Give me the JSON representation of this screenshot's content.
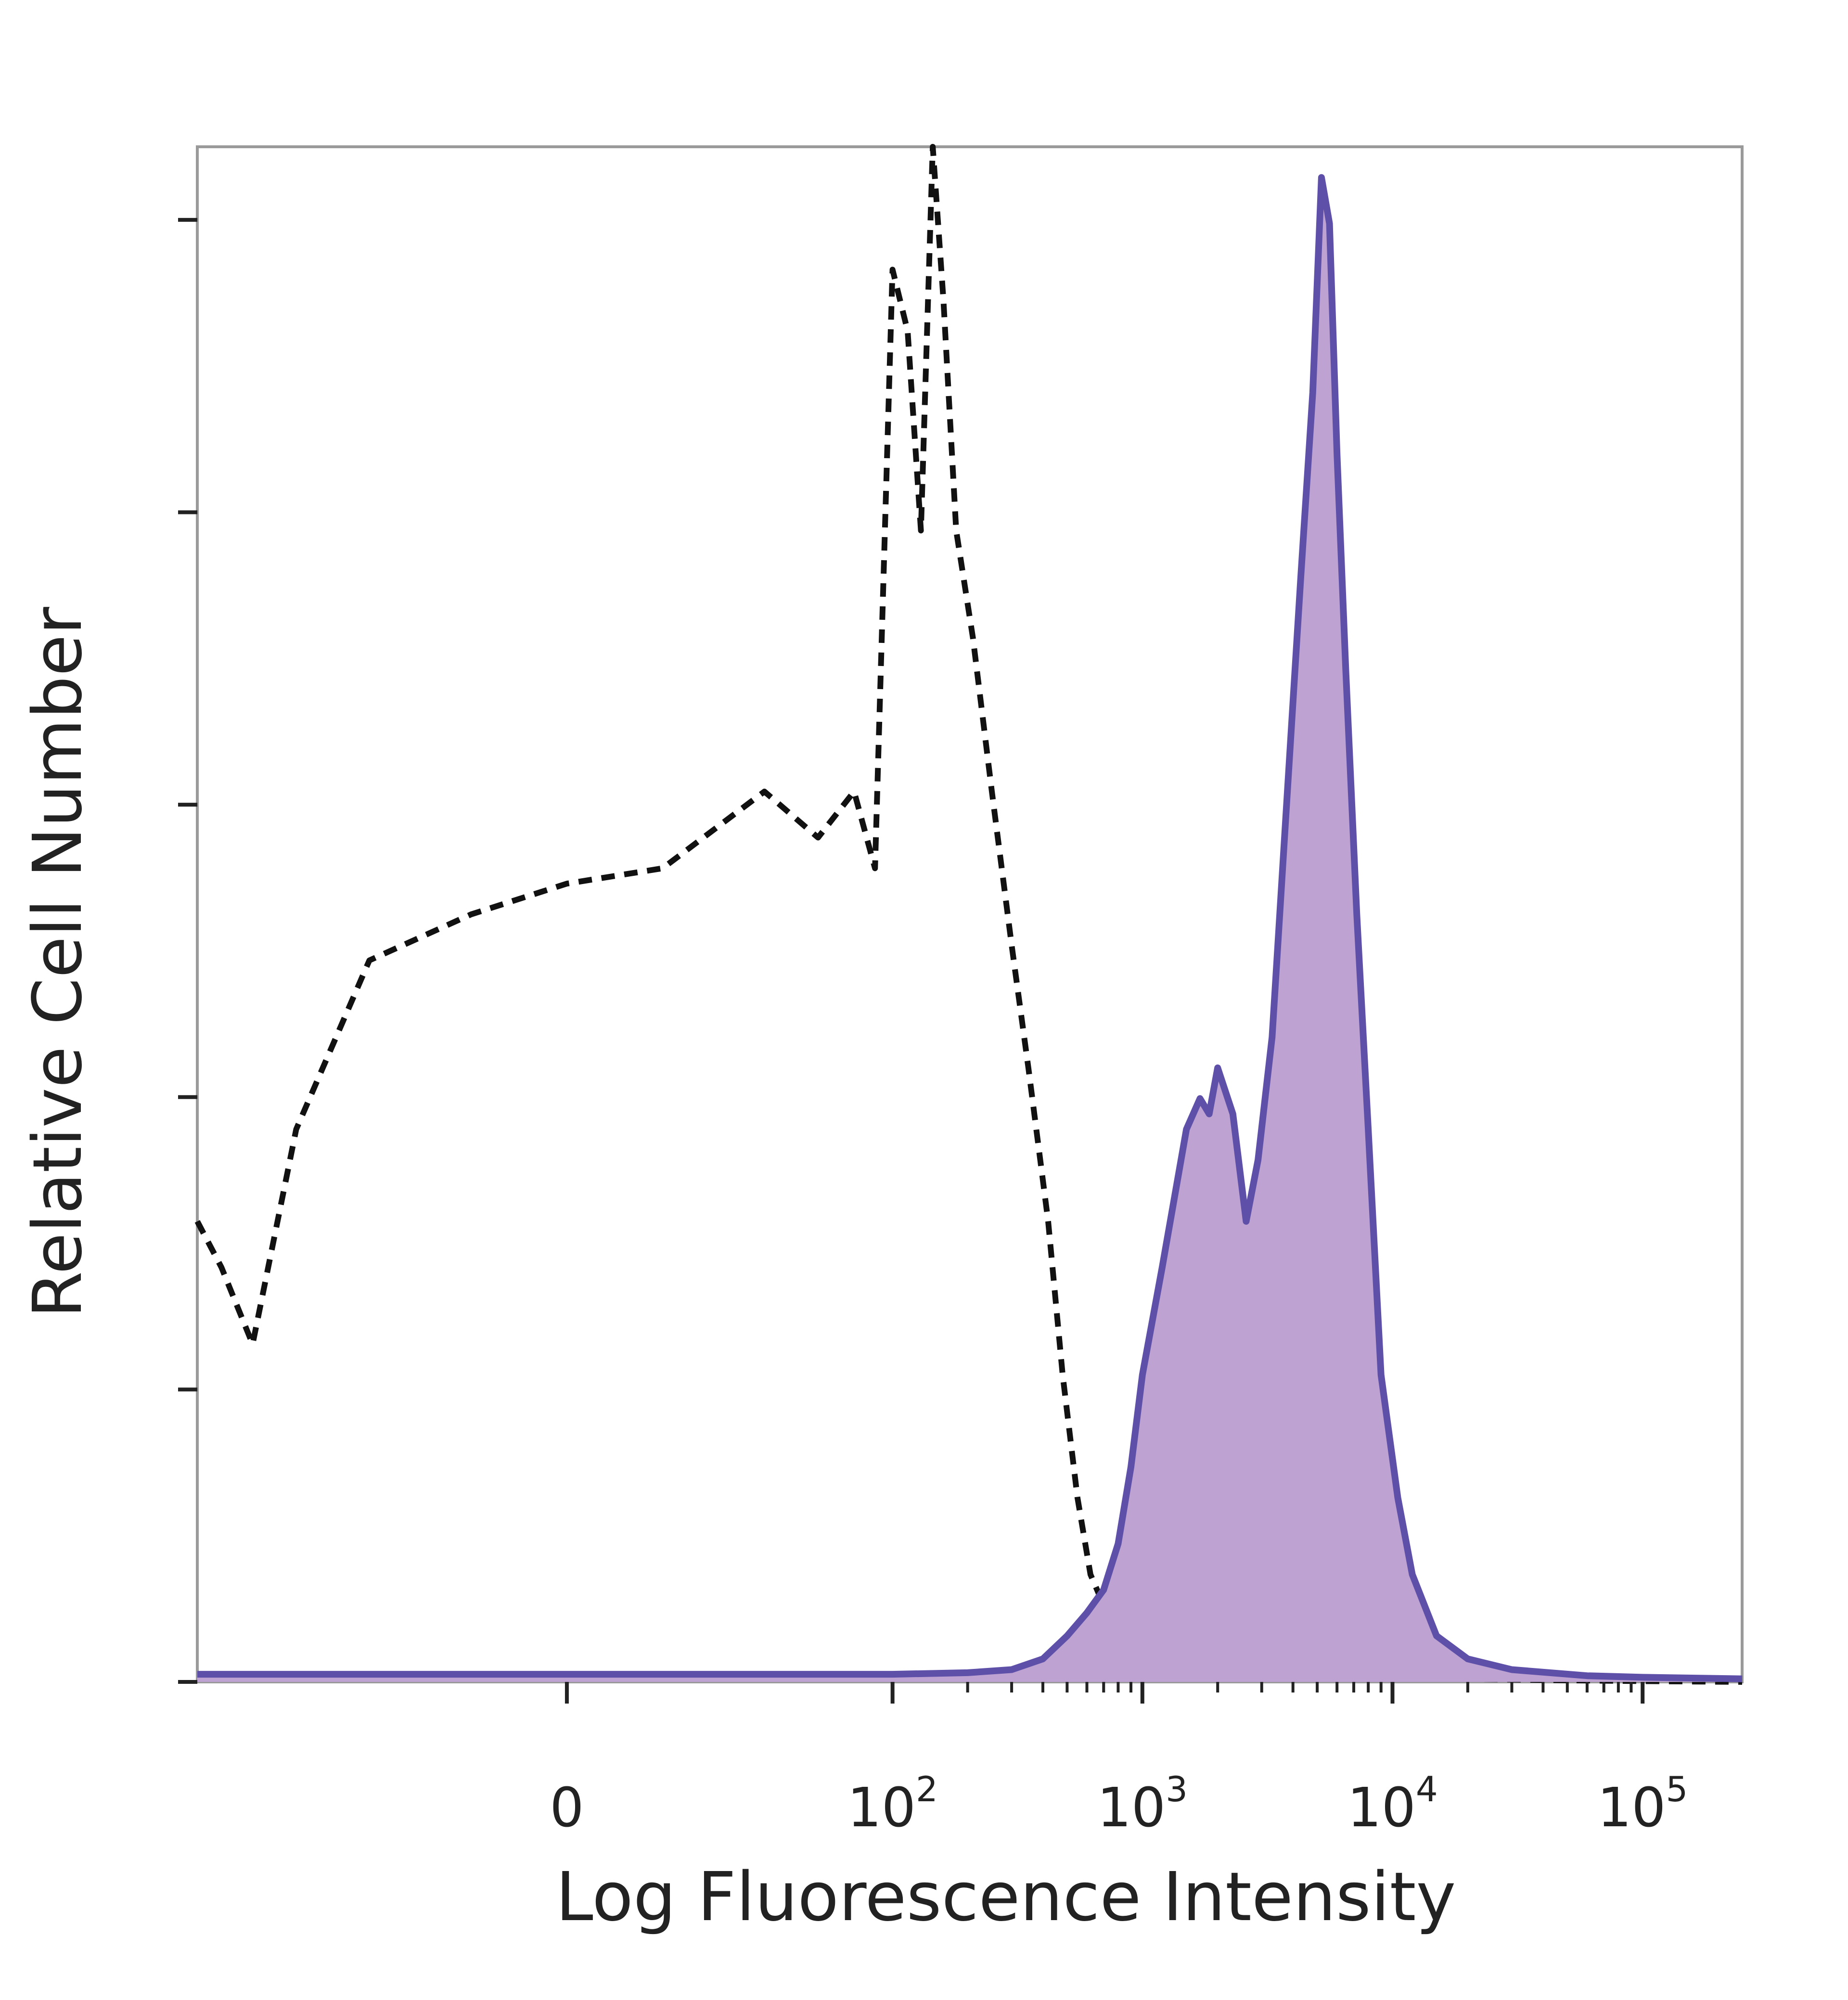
{
  "chart_data": {
    "type": "area",
    "xlabel": "Log Fluorescence Intensity",
    "ylabel": "Relative Cell Number",
    "x_scale": "biexponential",
    "x_ticks": [
      {
        "value": 0,
        "base": "0",
        "exp": ""
      },
      {
        "value": 100,
        "base": "10",
        "exp": "2"
      },
      {
        "value": 1000,
        "base": "10",
        "exp": "3"
      },
      {
        "value": 10000,
        "base": "10",
        "exp": "4"
      },
      {
        "value": 100000,
        "base": "10",
        "exp": "5"
      }
    ],
    "xlim": [
      -150,
      250000
    ],
    "ylim": [
      0,
      100
    ],
    "grid": false,
    "series": [
      {
        "style": "dashed-outline",
        "color": "#111111",
        "points": [
          [
            -150,
            30
          ],
          [
            -120,
            27
          ],
          [
            -90,
            22
          ],
          [
            -60,
            36
          ],
          [
            -30,
            47
          ],
          [
            -10,
            50
          ],
          [
            0,
            52
          ],
          [
            10,
            53
          ],
          [
            30,
            58
          ],
          [
            50,
            55
          ],
          [
            70,
            58
          ],
          [
            85,
            53
          ],
          [
            100,
            92
          ],
          [
            115,
            88
          ],
          [
            130,
            75
          ],
          [
            145,
            100
          ],
          [
            160,
            90
          ],
          [
            180,
            75
          ],
          [
            210,
            68
          ],
          [
            250,
            58
          ],
          [
            300,
            48
          ],
          [
            350,
            40
          ],
          [
            420,
            30
          ],
          [
            480,
            20
          ],
          [
            550,
            12
          ],
          [
            620,
            7
          ],
          [
            700,
            5
          ],
          [
            800,
            4
          ],
          [
            1000,
            3
          ],
          [
            1300,
            2.5
          ],
          [
            2000,
            1.5
          ],
          [
            3000,
            1
          ],
          [
            5000,
            0.7
          ],
          [
            8000,
            0.5
          ],
          [
            12000,
            0.3
          ],
          [
            20000,
            0.2
          ],
          [
            50000,
            0.1
          ],
          [
            100000,
            0.05
          ],
          [
            250000,
            0
          ]
        ]
      },
      {
        "style": "filled",
        "color": "#5e50a8",
        "fill": "#bea3d2",
        "points": [
          [
            -150,
            0.5
          ],
          [
            0,
            0.5
          ],
          [
            100,
            0.5
          ],
          [
            200,
            0.6
          ],
          [
            300,
            0.8
          ],
          [
            400,
            1.5
          ],
          [
            500,
            3
          ],
          [
            600,
            4.5
          ],
          [
            700,
            6
          ],
          [
            800,
            9
          ],
          [
            900,
            14
          ],
          [
            1000,
            20
          ],
          [
            1200,
            27
          ],
          [
            1500,
            36
          ],
          [
            1700,
            38
          ],
          [
            1850,
            37
          ],
          [
            2000,
            40
          ],
          [
            2300,
            37
          ],
          [
            2600,
            30
          ],
          [
            2900,
            34
          ],
          [
            3300,
            42
          ],
          [
            3800,
            58
          ],
          [
            4300,
            72
          ],
          [
            4800,
            84
          ],
          [
            5200,
            98
          ],
          [
            5600,
            95
          ],
          [
            6000,
            80
          ],
          [
            6500,
            66
          ],
          [
            7200,
            50
          ],
          [
            8000,
            36
          ],
          [
            9000,
            20
          ],
          [
            10500,
            12
          ],
          [
            12000,
            7
          ],
          [
            15000,
            3
          ],
          [
            20000,
            1.5
          ],
          [
            30000,
            0.8
          ],
          [
            60000,
            0.4
          ],
          [
            100000,
            0.3
          ],
          [
            250000,
            0.2
          ]
        ]
      }
    ]
  }
}
